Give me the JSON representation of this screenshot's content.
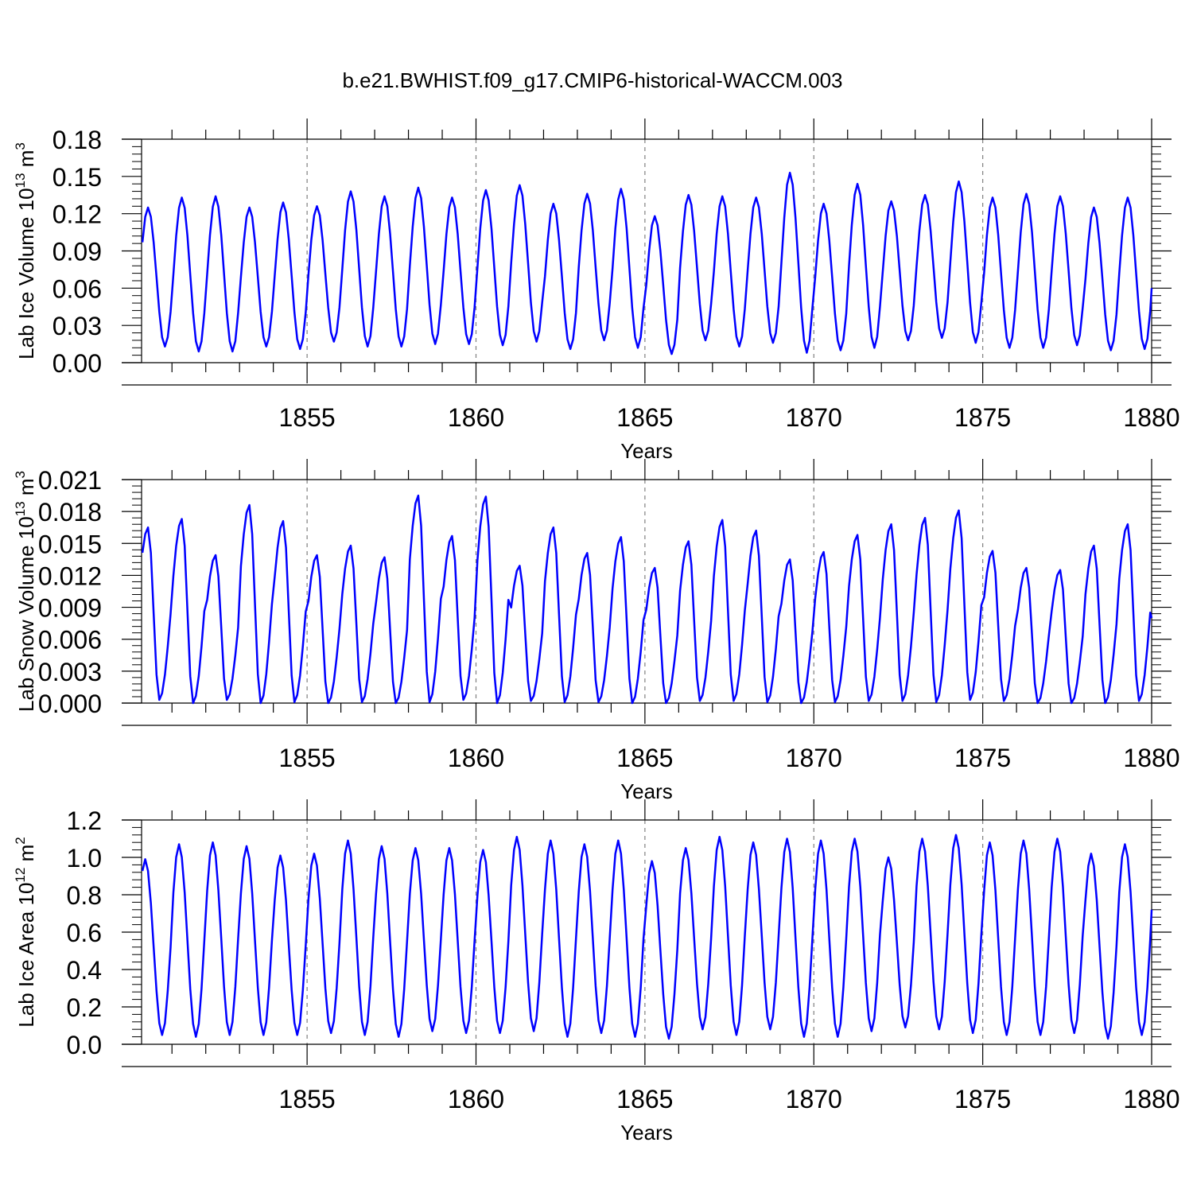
{
  "figure": {
    "title": "b.e21.BWHIST.f09_g17.CMIP6-historical-WACCM.003"
  },
  "colors": {
    "line": "#0000ff",
    "axis": "#000000",
    "grid": "#808080"
  },
  "chart_data": [
    {
      "type": "line",
      "panel": "lab-ice-volume",
      "ylabel_main": "Lab Ice Volume 10",
      "ylabel_exp": "13",
      "ylabel_unit": " m",
      "ylabel_unit_exp": "3",
      "xlabel": "Years",
      "xlim": [
        1850.1,
        1880.0
      ],
      "ylim": [
        0.0,
        0.18
      ],
      "yticks": [
        0.0,
        0.03,
        0.06,
        0.09,
        0.12,
        0.15,
        0.18
      ],
      "ytick_labels": [
        "0.00",
        "0.03",
        "0.06",
        "0.09",
        "0.12",
        "0.15",
        "0.18"
      ],
      "xticks": [
        1855,
        1860,
        1865,
        1870,
        1875,
        1880
      ],
      "xtick_labels": [
        "1855",
        "1860",
        "1865",
        "1870",
        "1875",
        "1880"
      ],
      "vertical_reference_lines": [
        1855,
        1860,
        1865,
        1870,
        1875
      ],
      "grid": false,
      "seasonal_cycle": {
        "peak_month": 3,
        "trough_month": 9,
        "peaks": [
          0.125,
          0.133,
          0.134,
          0.125,
          0.129,
          0.126,
          0.138,
          0.134,
          0.141,
          0.133,
          0.139,
          0.143,
          0.128,
          0.136,
          0.14,
          0.118,
          0.135,
          0.134,
          0.133,
          0.153,
          0.128,
          0.144,
          0.13,
          0.135,
          0.146,
          0.133,
          0.136,
          0.134,
          0.125,
          0.133
        ],
        "troughs": [
          0.013,
          0.009,
          0.009,
          0.013,
          0.011,
          0.017,
          0.013,
          0.013,
          0.015,
          0.015,
          0.014,
          0.017,
          0.011,
          0.018,
          0.012,
          0.007,
          0.018,
          0.013,
          0.016,
          0.008,
          0.01,
          0.012,
          0.018,
          0.02,
          0.016,
          0.012,
          0.012,
          0.014,
          0.01,
          0.011
        ],
        "end_value": 0.06
      }
    },
    {
      "type": "line",
      "panel": "lab-snow-volume",
      "ylabel_main": "Lab Snow Volume 10",
      "ylabel_exp": "13",
      "ylabel_unit": " m",
      "ylabel_unit_exp": "3",
      "xlabel": "Years",
      "xlim": [
        1850.1,
        1880.0
      ],
      "ylim": [
        0.0,
        0.021
      ],
      "yticks": [
        0.0,
        0.003,
        0.006,
        0.009,
        0.012,
        0.015,
        0.018,
        0.021
      ],
      "ytick_labels": [
        "0.000",
        "0.003",
        "0.006",
        "0.009",
        "0.012",
        "0.015",
        "0.018",
        "0.021"
      ],
      "xticks": [
        1855,
        1860,
        1865,
        1870,
        1875,
        1880
      ],
      "xtick_labels": [
        "1855",
        "1860",
        "1865",
        "1870",
        "1875",
        "1880"
      ],
      "vertical_reference_lines": [
        1855,
        1860,
        1865,
        1870,
        1875
      ],
      "grid": false,
      "seasonal_cycle": {
        "peak_month": 3,
        "trough_month": 7,
        "peaks": [
          0.0165,
          0.0173,
          0.0139,
          0.0186,
          0.0171,
          0.0139,
          0.0148,
          0.0137,
          0.0195,
          0.0157,
          0.0194,
          0.0129,
          0.0165,
          0.0141,
          0.0156,
          0.0127,
          0.0152,
          0.0172,
          0.0162,
          0.0135,
          0.0142,
          0.0158,
          0.0168,
          0.0174,
          0.0181,
          0.0143,
          0.0127,
          0.0125,
          0.0148,
          0.0168
        ],
        "troughs": [
          0.0003,
          0.0,
          0.0003,
          0.0,
          0.0001,
          0.0,
          0.0001,
          0.0,
          0.0001,
          0.0003,
          0.0,
          0.0002,
          0.0001,
          0.0001,
          0.0,
          0.0,
          0.0002,
          0.0002,
          0.0001,
          0.0,
          0.0001,
          0.0002,
          0.0002,
          0.0001,
          0.0003,
          0.0002,
          0.0,
          0.0,
          0.0,
          0.0002
        ],
        "end_value": 0.008
      }
    },
    {
      "type": "line",
      "panel": "lab-ice-area",
      "ylabel_main": "Lab Ice Area 10",
      "ylabel_exp": "12",
      "ylabel_unit": " m",
      "ylabel_unit_exp": "2",
      "xlabel": "Years",
      "xlim": [
        1850.1,
        1880.0
      ],
      "ylim": [
        0.0,
        1.2
      ],
      "yticks": [
        0.0,
        0.2,
        0.4,
        0.6,
        0.8,
        1.0,
        1.2
      ],
      "ytick_labels": [
        "0.0",
        "0.2",
        "0.4",
        "0.6",
        "0.8",
        "1.0",
        "1.2"
      ],
      "xticks": [
        1855,
        1860,
        1865,
        1870,
        1875,
        1880
      ],
      "xtick_labels": [
        "1855",
        "1860",
        "1865",
        "1870",
        "1875",
        "1880"
      ],
      "vertical_reference_lines": [
        1855,
        1860,
        1865,
        1870,
        1875
      ],
      "grid": false,
      "seasonal_cycle": {
        "peak_month": 2,
        "trough_month": 8,
        "peaks": [
          0.99,
          1.07,
          1.08,
          1.06,
          1.01,
          1.02,
          1.09,
          1.06,
          1.05,
          1.05,
          1.04,
          1.11,
          1.09,
          1.07,
          1.09,
          0.98,
          1.05,
          1.11,
          1.08,
          1.1,
          1.09,
          1.1,
          1.0,
          1.1,
          1.12,
          1.08,
          1.09,
          1.1,
          1.02,
          1.07
        ],
        "troughs": [
          0.05,
          0.04,
          0.05,
          0.05,
          0.05,
          0.06,
          0.05,
          0.04,
          0.07,
          0.06,
          0.06,
          0.07,
          0.04,
          0.06,
          0.04,
          0.03,
          0.08,
          0.05,
          0.08,
          0.04,
          0.04,
          0.07,
          0.09,
          0.08,
          0.06,
          0.05,
          0.05,
          0.06,
          0.03,
          0.05
        ],
        "end_value": 0.72
      }
    }
  ]
}
